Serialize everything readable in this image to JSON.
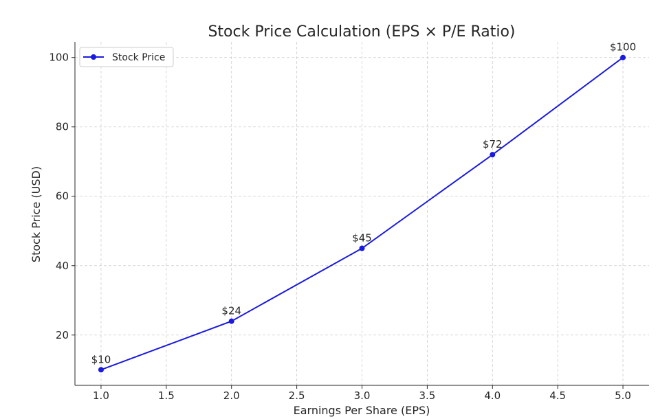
{
  "chart_data": {
    "type": "line",
    "title": "Stock Price Calculation (EPS × P/E Ratio)",
    "xlabel": "Earnings Per Share (EPS)",
    "ylabel": "Stock Price (USD)",
    "xlim": [
      0.8,
      5.2
    ],
    "ylim": [
      5.5,
      104.5
    ],
    "x_ticks": [
      1.0,
      1.5,
      2.0,
      2.5,
      3.0,
      3.5,
      4.0,
      4.5,
      5.0
    ],
    "x_tick_labels": [
      "1.0",
      "1.5",
      "2.0",
      "2.5",
      "3.0",
      "3.5",
      "4.0",
      "4.5",
      "5.0"
    ],
    "y_ticks": [
      20,
      40,
      60,
      80,
      100
    ],
    "y_tick_labels": [
      "20",
      "40",
      "60",
      "80",
      "100"
    ],
    "grid": true,
    "legend_position": "top-left",
    "series": [
      {
        "name": "Stock Price",
        "color": "#1a1ae0",
        "marker": "circle",
        "x": [
          1,
          2,
          3,
          4,
          5
        ],
        "y": [
          10,
          24,
          45,
          72,
          100
        ],
        "labels": [
          "$10",
          "$24",
          "$45",
          "$72",
          "$100"
        ]
      }
    ]
  }
}
